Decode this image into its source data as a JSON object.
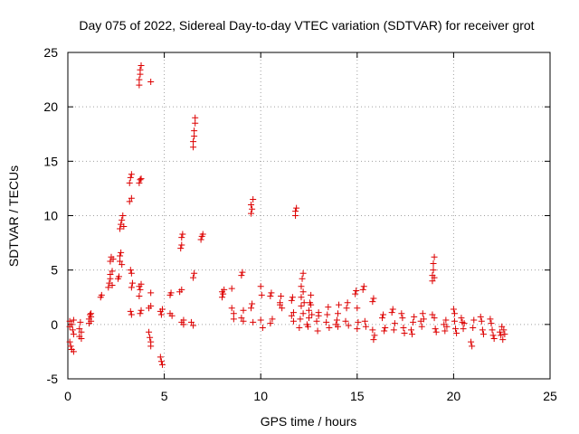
{
  "chart_data": {
    "type": "scatter",
    "title": "Day 075 of 2022, Sidereal Day-to-day VTEC variation (SDTVAR) for receiver grot",
    "xlabel": "GPS time / hours",
    "ylabel": "SDTVAR / TECUs",
    "xlim": [
      0,
      25
    ],
    "ylim": [
      -5,
      25
    ],
    "xticks": [
      0,
      5,
      10,
      15,
      20,
      25
    ],
    "yticks": [
      -5,
      0,
      5,
      10,
      15,
      20,
      25
    ],
    "grid": true,
    "marker": "+",
    "color": "#dd0000",
    "series": [
      {
        "name": "SDTVAR",
        "points": [
          [
            0.1,
            0.3
          ],
          [
            0.1,
            -0.2
          ],
          [
            0.1,
            -1.6
          ],
          [
            0.15,
            -2.0
          ],
          [
            0.2,
            -2.3
          ],
          [
            0.2,
            0.0
          ],
          [
            0.25,
            -0.5
          ],
          [
            0.3,
            -0.9
          ],
          [
            0.3,
            -2.5
          ],
          [
            0.3,
            0.4
          ],
          [
            0.6,
            -0.4
          ],
          [
            0.6,
            -1.1
          ],
          [
            0.65,
            0.2
          ],
          [
            0.7,
            -0.7
          ],
          [
            0.7,
            -1.3
          ],
          [
            1.1,
            0.1
          ],
          [
            1.1,
            0.5
          ],
          [
            1.15,
            0.9
          ],
          [
            1.2,
            0.3
          ],
          [
            1.2,
            0.7
          ],
          [
            1.2,
            1.0
          ],
          [
            1.7,
            2.5
          ],
          [
            1.75,
            2.7
          ],
          [
            2.1,
            3.4
          ],
          [
            2.15,
            3.8
          ],
          [
            2.2,
            4.2
          ],
          [
            2.2,
            4.6
          ],
          [
            2.2,
            5.8
          ],
          [
            2.25,
            6.2
          ],
          [
            2.3,
            4.9
          ],
          [
            2.3,
            3.6
          ],
          [
            2.35,
            6.0
          ],
          [
            2.6,
            4.2
          ],
          [
            2.65,
            4.4
          ],
          [
            2.7,
            5.8
          ],
          [
            2.7,
            6.3
          ],
          [
            2.75,
            6.6
          ],
          [
            2.8,
            5.5
          ],
          [
            2.7,
            8.8
          ],
          [
            2.75,
            9.2
          ],
          [
            2.8,
            9.6
          ],
          [
            2.85,
            10.0
          ],
          [
            2.9,
            9.0
          ],
          [
            3.2,
            13.0
          ],
          [
            3.2,
            11.3
          ],
          [
            3.25,
            13.5
          ],
          [
            3.3,
            11.6
          ],
          [
            3.3,
            13.8
          ],
          [
            3.25,
            5.0
          ],
          [
            3.3,
            4.7
          ],
          [
            3.35,
            3.8
          ],
          [
            3.3,
            3.4
          ],
          [
            3.25,
            1.2
          ],
          [
            3.3,
            0.9
          ],
          [
            3.7,
            22.0
          ],
          [
            3.7,
            22.5
          ],
          [
            3.75,
            23.0
          ],
          [
            3.75,
            23.4
          ],
          [
            3.8,
            23.8
          ],
          [
            4.3,
            22.3
          ],
          [
            3.7,
            13.0
          ],
          [
            3.75,
            13.3
          ],
          [
            3.8,
            13.4
          ],
          [
            3.7,
            3.5
          ],
          [
            3.75,
            3.2
          ],
          [
            3.8,
            3.7
          ],
          [
            3.7,
            2.6
          ],
          [
            3.75,
            1.0
          ],
          [
            3.8,
            1.3
          ],
          [
            4.2,
            -0.7
          ],
          [
            4.25,
            -1.2
          ],
          [
            4.3,
            -1.6
          ],
          [
            4.3,
            -2.0
          ],
          [
            4.2,
            1.5
          ],
          [
            4.3,
            1.7
          ],
          [
            4.3,
            2.9
          ],
          [
            4.8,
            1.2
          ],
          [
            4.85,
            0.9
          ],
          [
            4.8,
            -3.0
          ],
          [
            4.85,
            -3.4
          ],
          [
            4.9,
            -3.7
          ],
          [
            4.9,
            1.4
          ],
          [
            5.3,
            2.7
          ],
          [
            5.35,
            2.9
          ],
          [
            5.4,
            0.8
          ],
          [
            5.3,
            1.0
          ],
          [
            5.9,
            8.0
          ],
          [
            5.95,
            8.3
          ],
          [
            5.9,
            7.3
          ],
          [
            5.85,
            7.0
          ],
          [
            5.8,
            3.0
          ],
          [
            5.9,
            3.2
          ],
          [
            6.0,
            0.4
          ],
          [
            5.9,
            0.2
          ],
          [
            6.0,
            0.0
          ],
          [
            6.5,
            16.3
          ],
          [
            6.5,
            16.8
          ],
          [
            6.55,
            17.3
          ],
          [
            6.55,
            17.8
          ],
          [
            6.6,
            18.5
          ],
          [
            6.6,
            19.0
          ],
          [
            6.5,
            4.3
          ],
          [
            6.55,
            4.7
          ],
          [
            6.4,
            0.2
          ],
          [
            6.5,
            -0.1
          ],
          [
            6.9,
            7.8
          ],
          [
            6.95,
            8.1
          ],
          [
            7.0,
            8.3
          ],
          [
            8.0,
            2.5
          ],
          [
            8.05,
            2.8
          ],
          [
            8.1,
            3.2
          ],
          [
            8.0,
            3.0
          ],
          [
            8.5,
            1.5
          ],
          [
            8.6,
            1.0
          ],
          [
            8.5,
            3.3
          ],
          [
            8.6,
            0.5
          ],
          [
            9.0,
            4.5
          ],
          [
            9.05,
            4.8
          ],
          [
            9.0,
            0.6
          ],
          [
            9.1,
            0.3
          ],
          [
            9.1,
            1.3
          ],
          [
            9.5,
            10.2
          ],
          [
            9.55,
            10.6
          ],
          [
            9.5,
            11.0
          ],
          [
            9.6,
            11.5
          ],
          [
            9.5,
            1.5
          ],
          [
            9.55,
            1.9
          ],
          [
            9.6,
            0.2
          ],
          [
            10.0,
            3.5
          ],
          [
            10.05,
            2.7
          ],
          [
            10.0,
            0.4
          ],
          [
            10.1,
            -0.3
          ],
          [
            10.5,
            2.6
          ],
          [
            10.55,
            2.9
          ],
          [
            10.6,
            0.5
          ],
          [
            10.5,
            0.1
          ],
          [
            11.0,
            2.0
          ],
          [
            11.05,
            2.6
          ],
          [
            11.1,
            1.5
          ],
          [
            11.0,
            1.8
          ],
          [
            11.6,
            2.2
          ],
          [
            11.65,
            2.5
          ],
          [
            11.7,
            1.1
          ],
          [
            11.6,
            0.8
          ],
          [
            11.7,
            0.3
          ],
          [
            11.8,
            10.0
          ],
          [
            11.8,
            10.4
          ],
          [
            11.85,
            10.7
          ],
          [
            12.0,
            -0.3
          ],
          [
            12.05,
            0.5
          ],
          [
            12.1,
            1.7
          ],
          [
            12.1,
            2.5
          ],
          [
            12.1,
            3.5
          ],
          [
            12.15,
            4.2
          ],
          [
            12.2,
            4.7
          ],
          [
            12.2,
            3.0
          ],
          [
            12.25,
            2.0
          ],
          [
            12.2,
            1.0
          ],
          [
            12.4,
            0.0
          ],
          [
            12.45,
            -0.2
          ],
          [
            12.5,
            0.6
          ],
          [
            12.5,
            1.3
          ],
          [
            12.55,
            2.0
          ],
          [
            12.6,
            2.7
          ],
          [
            12.6,
            1.8
          ],
          [
            12.65,
            0.9
          ],
          [
            12.9,
            0.3
          ],
          [
            12.95,
            -0.6
          ],
          [
            13.0,
            0.8
          ],
          [
            13.0,
            1.1
          ],
          [
            13.4,
            0.2
          ],
          [
            13.45,
            0.9
          ],
          [
            13.5,
            1.6
          ],
          [
            13.55,
            -0.3
          ],
          [
            13.9,
            0.0
          ],
          [
            13.95,
            0.4
          ],
          [
            14.0,
            1.0
          ],
          [
            14.05,
            1.8
          ],
          [
            14.0,
            -0.2
          ],
          [
            14.4,
            0.3
          ],
          [
            14.45,
            1.5
          ],
          [
            14.5,
            2.0
          ],
          [
            14.55,
            -0.1
          ],
          [
            14.9,
            2.8
          ],
          [
            14.95,
            3.1
          ],
          [
            15.0,
            1.5
          ],
          [
            15.05,
            0.2
          ],
          [
            15.0,
            -0.4
          ],
          [
            15.3,
            3.2
          ],
          [
            15.35,
            3.5
          ],
          [
            15.4,
            0.3
          ],
          [
            15.45,
            -0.2
          ],
          [
            15.8,
            2.1
          ],
          [
            15.85,
            2.4
          ],
          [
            15.9,
            -1.0
          ],
          [
            15.85,
            -1.4
          ],
          [
            15.8,
            -0.5
          ],
          [
            16.3,
            0.6
          ],
          [
            16.35,
            0.9
          ],
          [
            16.4,
            -0.6
          ],
          [
            16.45,
            -0.3
          ],
          [
            16.8,
            1.1
          ],
          [
            16.85,
            1.4
          ],
          [
            16.9,
            -0.5
          ],
          [
            16.95,
            0.1
          ],
          [
            17.3,
            1.0
          ],
          [
            17.35,
            0.6
          ],
          [
            17.4,
            -0.3
          ],
          [
            17.45,
            -0.8
          ],
          [
            17.8,
            -0.5
          ],
          [
            17.85,
            -0.9
          ],
          [
            17.9,
            0.2
          ],
          [
            17.95,
            0.7
          ],
          [
            18.3,
            0.3
          ],
          [
            18.35,
            -0.2
          ],
          [
            18.4,
            1.0
          ],
          [
            18.45,
            0.5
          ],
          [
            18.9,
            4.0
          ],
          [
            18.9,
            4.5
          ],
          [
            18.95,
            5.0
          ],
          [
            18.95,
            5.6
          ],
          [
            19.0,
            6.2
          ],
          [
            19.0,
            4.3
          ],
          [
            18.9,
            0.9
          ],
          [
            19.0,
            0.6
          ],
          [
            19.05,
            -0.4
          ],
          [
            19.1,
            -0.7
          ],
          [
            19.5,
            0.0
          ],
          [
            19.55,
            -0.6
          ],
          [
            19.6,
            0.4
          ],
          [
            19.65,
            -0.2
          ],
          [
            20.0,
            1.4
          ],
          [
            20.05,
            1.0
          ],
          [
            20.1,
            -0.4
          ],
          [
            20.15,
            -0.8
          ],
          [
            20.05,
            0.3
          ],
          [
            20.4,
            0.6
          ],
          [
            20.45,
            0.2
          ],
          [
            20.5,
            -0.4
          ],
          [
            20.55,
            0.1
          ],
          [
            20.9,
            -1.6
          ],
          [
            20.95,
            -2.0
          ],
          [
            21.0,
            -0.3
          ],
          [
            21.05,
            0.4
          ],
          [
            21.4,
            0.7
          ],
          [
            21.45,
            0.3
          ],
          [
            21.5,
            -0.5
          ],
          [
            21.55,
            -0.9
          ],
          [
            21.9,
            0.5
          ],
          [
            21.95,
            0.1
          ],
          [
            22.0,
            -0.5
          ],
          [
            22.05,
            -1.0
          ],
          [
            22.1,
            -1.3
          ],
          [
            22.4,
            -0.7
          ],
          [
            22.45,
            -1.0
          ],
          [
            22.5,
            -0.2
          ],
          [
            22.55,
            -1.4
          ],
          [
            22.6,
            -0.5
          ],
          [
            22.65,
            -0.9
          ]
        ]
      }
    ]
  }
}
